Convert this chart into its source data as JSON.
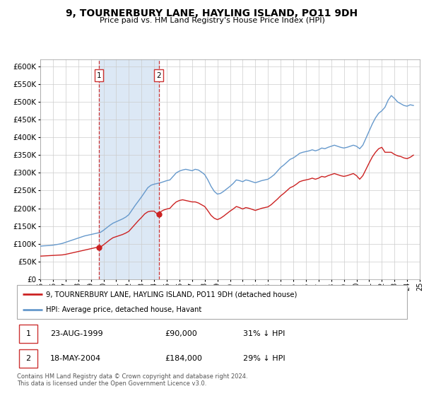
{
  "title": "9, TOURNERBURY LANE, HAYLING ISLAND, PO11 9DH",
  "subtitle": "Price paid vs. HM Land Registry's House Price Index (HPI)",
  "ytick_values": [
    0,
    50000,
    100000,
    150000,
    200000,
    250000,
    300000,
    350000,
    400000,
    450000,
    500000,
    550000,
    600000
  ],
  "xlim": [
    1995,
    2025
  ],
  "ylim": [
    0,
    620000
  ],
  "purchase1_date": 1999.64,
  "purchase1_price": 90000,
  "purchase2_date": 2004.38,
  "purchase2_price": 184000,
  "shade_x1": 1999.64,
  "shade_x2": 2004.38,
  "hpi_color": "#6699cc",
  "price_color": "#cc2222",
  "dot_color": "#cc2222",
  "shade_color": "#dce8f5",
  "vline_color": "#cc3333",
  "legend_label1": "9, TOURNERBURY LANE, HAYLING ISLAND, PO11 9DH (detached house)",
  "legend_label2": "HPI: Average price, detached house, Havant",
  "table_row1": [
    "1",
    "23-AUG-1999",
    "£90,000",
    "31% ↓ HPI"
  ],
  "table_row2": [
    "2",
    "18-MAY-2004",
    "£184,000",
    "29% ↓ HPI"
  ],
  "footer1": "Contains HM Land Registry data © Crown copyright and database right 2024.",
  "footer2": "This data is licensed under the Open Government Licence v3.0.",
  "hpi_data_x": [
    1995.0,
    1995.25,
    1995.5,
    1995.75,
    1996.0,
    1996.25,
    1996.5,
    1996.75,
    1997.0,
    1997.25,
    1997.5,
    1997.75,
    1998.0,
    1998.25,
    1998.5,
    1998.75,
    1999.0,
    1999.25,
    1999.5,
    1999.75,
    2000.0,
    2000.25,
    2000.5,
    2000.75,
    2001.0,
    2001.25,
    2001.5,
    2001.75,
    2002.0,
    2002.25,
    2002.5,
    2002.75,
    2003.0,
    2003.25,
    2003.5,
    2003.75,
    2004.0,
    2004.25,
    2004.5,
    2004.75,
    2005.0,
    2005.25,
    2005.5,
    2005.75,
    2006.0,
    2006.25,
    2006.5,
    2006.75,
    2007.0,
    2007.25,
    2007.5,
    2007.75,
    2008.0,
    2008.25,
    2008.5,
    2008.75,
    2009.0,
    2009.25,
    2009.5,
    2009.75,
    2010.0,
    2010.25,
    2010.5,
    2010.75,
    2011.0,
    2011.25,
    2011.5,
    2011.75,
    2012.0,
    2012.25,
    2012.5,
    2012.75,
    2013.0,
    2013.25,
    2013.5,
    2013.75,
    2014.0,
    2014.25,
    2014.5,
    2014.75,
    2015.0,
    2015.25,
    2015.5,
    2015.75,
    2016.0,
    2016.25,
    2016.5,
    2016.75,
    2017.0,
    2017.25,
    2017.5,
    2017.75,
    2018.0,
    2018.25,
    2018.5,
    2018.75,
    2019.0,
    2019.25,
    2019.5,
    2019.75,
    2020.0,
    2020.25,
    2020.5,
    2020.75,
    2021.0,
    2021.25,
    2021.5,
    2021.75,
    2022.0,
    2022.25,
    2022.5,
    2022.75,
    2023.0,
    2023.25,
    2023.5,
    2023.75,
    2024.0,
    2024.25,
    2024.5
  ],
  "hpi_data_y": [
    93000,
    94000,
    94500,
    95000,
    96000,
    97500,
    99000,
    101000,
    104000,
    107000,
    110000,
    113000,
    116000,
    119000,
    122000,
    124000,
    126000,
    128000,
    130000,
    132000,
    138000,
    145000,
    152000,
    158000,
    162000,
    166000,
    170000,
    175000,
    182000,
    195000,
    208000,
    220000,
    232000,
    245000,
    258000,
    265000,
    268000,
    270000,
    272000,
    275000,
    278000,
    280000,
    290000,
    300000,
    305000,
    308000,
    310000,
    308000,
    306000,
    310000,
    308000,
    302000,
    295000,
    280000,
    262000,
    248000,
    240000,
    242000,
    248000,
    255000,
    262000,
    270000,
    280000,
    278000,
    275000,
    280000,
    278000,
    275000,
    272000,
    275000,
    278000,
    280000,
    282000,
    288000,
    295000,
    305000,
    315000,
    322000,
    330000,
    338000,
    342000,
    348000,
    355000,
    358000,
    360000,
    362000,
    365000,
    362000,
    365000,
    370000,
    368000,
    372000,
    375000,
    378000,
    375000,
    372000,
    370000,
    372000,
    375000,
    378000,
    375000,
    368000,
    378000,
    398000,
    418000,
    438000,
    455000,
    468000,
    475000,
    485000,
    505000,
    518000,
    510000,
    500000,
    495000,
    490000,
    488000,
    492000,
    490000
  ],
  "price_data_x": [
    1995.0,
    1995.25,
    1995.5,
    1995.75,
    1996.0,
    1996.25,
    1996.5,
    1996.75,
    1997.0,
    1997.25,
    1997.5,
    1997.75,
    1998.0,
    1998.25,
    1998.5,
    1998.75,
    1999.0,
    1999.25,
    1999.5,
    1999.75,
    2000.0,
    2000.25,
    2000.5,
    2000.75,
    2001.0,
    2001.25,
    2001.5,
    2001.75,
    2002.0,
    2002.25,
    2002.5,
    2002.75,
    2003.0,
    2003.25,
    2003.5,
    2003.75,
    2004.0,
    2004.25,
    2004.5,
    2004.75,
    2005.0,
    2005.25,
    2005.5,
    2005.75,
    2006.0,
    2006.25,
    2006.5,
    2006.75,
    2007.0,
    2007.25,
    2007.5,
    2007.75,
    2008.0,
    2008.25,
    2008.5,
    2008.75,
    2009.0,
    2009.25,
    2009.5,
    2009.75,
    2010.0,
    2010.25,
    2010.5,
    2010.75,
    2011.0,
    2011.25,
    2011.5,
    2011.75,
    2012.0,
    2012.25,
    2012.5,
    2012.75,
    2013.0,
    2013.25,
    2013.5,
    2013.75,
    2014.0,
    2014.25,
    2014.5,
    2014.75,
    2015.0,
    2015.25,
    2015.5,
    2015.75,
    2016.0,
    2016.25,
    2016.5,
    2016.75,
    2017.0,
    2017.25,
    2017.5,
    2017.75,
    2018.0,
    2018.25,
    2018.5,
    2018.75,
    2019.0,
    2019.25,
    2019.5,
    2019.75,
    2020.0,
    2020.25,
    2020.5,
    2020.75,
    2021.0,
    2021.25,
    2021.5,
    2021.75,
    2022.0,
    2022.25,
    2022.5,
    2022.75,
    2023.0,
    2023.25,
    2023.5,
    2023.75,
    2024.0,
    2024.25,
    2024.5
  ],
  "price_data_y": [
    65000,
    65500,
    66000,
    66500,
    67000,
    67500,
    68000,
    68500,
    70000,
    72000,
    74000,
    76000,
    78000,
    80000,
    82000,
    84000,
    86000,
    88000,
    90000,
    90000,
    97000,
    104000,
    111000,
    117000,
    120000,
    123000,
    126000,
    130000,
    135000,
    145000,
    155000,
    165000,
    174000,
    184000,
    190000,
    192000,
    192000,
    184000,
    190000,
    195000,
    198000,
    200000,
    210000,
    218000,
    222000,
    224000,
    222000,
    220000,
    218000,
    218000,
    215000,
    210000,
    205000,
    193000,
    180000,
    172000,
    168000,
    172000,
    178000,
    185000,
    192000,
    198000,
    205000,
    202000,
    198000,
    202000,
    200000,
    197000,
    194000,
    197000,
    200000,
    202000,
    204000,
    210000,
    218000,
    226000,
    235000,
    242000,
    250000,
    258000,
    262000,
    268000,
    275000,
    278000,
    280000,
    282000,
    285000,
    282000,
    285000,
    290000,
    288000,
    292000,
    295000,
    298000,
    295000,
    292000,
    290000,
    292000,
    295000,
    298000,
    292000,
    282000,
    292000,
    310000,
    328000,
    345000,
    358000,
    368000,
    372000,
    358000,
    358000,
    358000,
    352000,
    348000,
    346000,
    342000,
    340000,
    344000,
    350000
  ]
}
